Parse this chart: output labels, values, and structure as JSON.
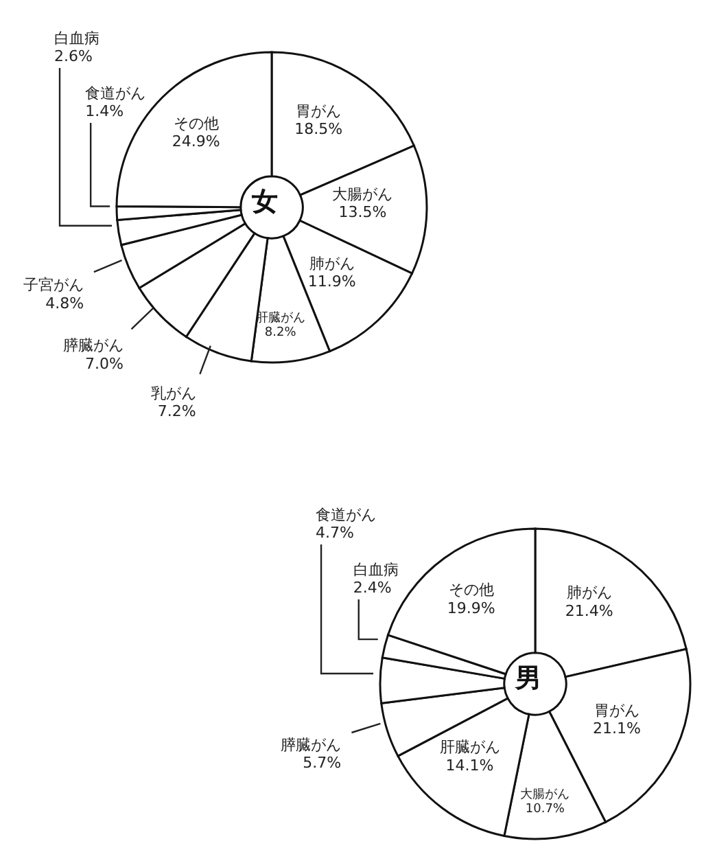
{
  "chart_data": [
    {
      "type": "donut",
      "title": "女",
      "categories": [
        "胃がん",
        "大腸がん",
        "肺がん",
        "肝臓がん",
        "乳がん",
        "膵臓がん",
        "子宮がん",
        "白血病",
        "食道がん",
        "その他"
      ],
      "values": [
        18.5,
        13.5,
        11.9,
        8.2,
        7.2,
        7.0,
        4.8,
        2.6,
        1.4,
        24.9
      ],
      "value_labels": [
        "18.5%",
        "13.5%",
        "11.9%",
        "8.2%",
        "7.2%",
        "7.0%",
        "4.8%",
        "2.6%",
        "1.4%",
        "24.9%"
      ],
      "colors": [
        "#ffffff",
        "#ffffff",
        "#ffffff",
        "#ffffff",
        "#ffffff",
        "#ffffff",
        "#ffffff",
        "#ffffff",
        "#ffffff",
        "#ffffff"
      ]
    },
    {
      "type": "donut",
      "title": "男",
      "categories": [
        "肺がん",
        "胃がん",
        "大腸がん",
        "肝臓がん",
        "膵臓がん",
        "食道がん",
        "白血病",
        "その他"
      ],
      "values": [
        21.4,
        21.1,
        10.7,
        14.1,
        5.7,
        4.7,
        2.4,
        19.9
      ],
      "value_labels": [
        "21.4%",
        "21.1%",
        "10.7%",
        "14.1%",
        "5.7%",
        "4.7%",
        "2.4%",
        "19.9%"
      ],
      "colors": [
        "#ffffff",
        "#ffffff",
        "#ffffff",
        "#ffffff",
        "#ffffff",
        "#ffffff",
        "#ffffff",
        "#ffffff"
      ]
    }
  ]
}
